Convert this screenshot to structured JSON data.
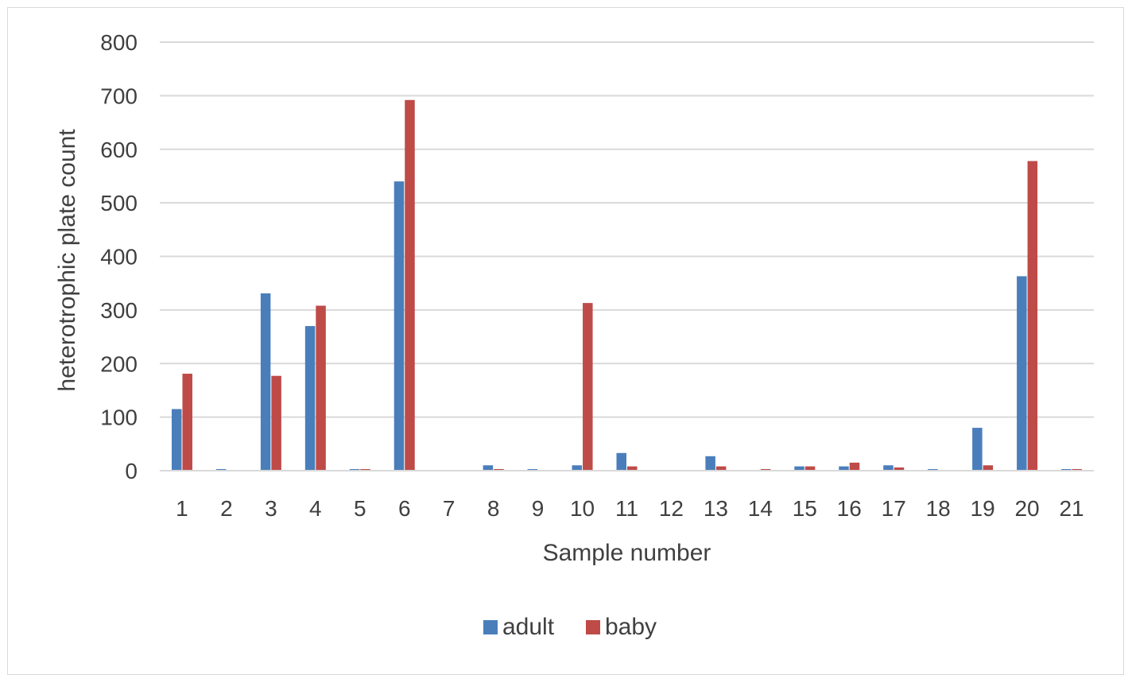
{
  "chart_data": {
    "type": "bar",
    "xlabel": "Sample number",
    "ylabel": "heterotrophic plate count",
    "ylim": [
      0,
      800
    ],
    "yticks": [
      0,
      100,
      200,
      300,
      400,
      500,
      600,
      700,
      800
    ],
    "grid": "horizontal",
    "legend_position": "bottom",
    "categories": [
      "1",
      "2",
      "3",
      "4",
      "5",
      "6",
      "7",
      "8",
      "9",
      "10",
      "11",
      "12",
      "13",
      "14",
      "15",
      "16",
      "17",
      "18",
      "19",
      "20",
      "21"
    ],
    "series": [
      {
        "name": "adult",
        "color": "#4a7ebb",
        "values": [
          115,
          3,
          331,
          270,
          3,
          540,
          0,
          10,
          3,
          10,
          33,
          0,
          27,
          0,
          8,
          8,
          10,
          3,
          80,
          363,
          3
        ]
      },
      {
        "name": "baby",
        "color": "#be4b48",
        "values": [
          181,
          0,
          177,
          308,
          3,
          692,
          0,
          3,
          0,
          313,
          8,
          0,
          8,
          3,
          8,
          15,
          6,
          0,
          10,
          578,
          3
        ]
      }
    ]
  }
}
